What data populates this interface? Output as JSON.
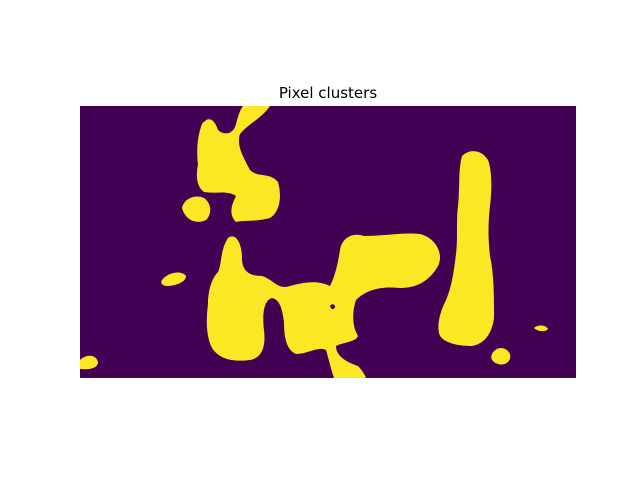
{
  "chart_data": {
    "type": "heatmap",
    "title": "Pixel clusters",
    "xlabel": "",
    "ylabel": "",
    "axes_visible": false,
    "grid": false,
    "legend": "none",
    "colormap": "viridis",
    "values_shown": [
      0,
      1
    ],
    "colors": {
      "background_value_0": "#440154",
      "cluster_value_1": "#fde725"
    }
  }
}
